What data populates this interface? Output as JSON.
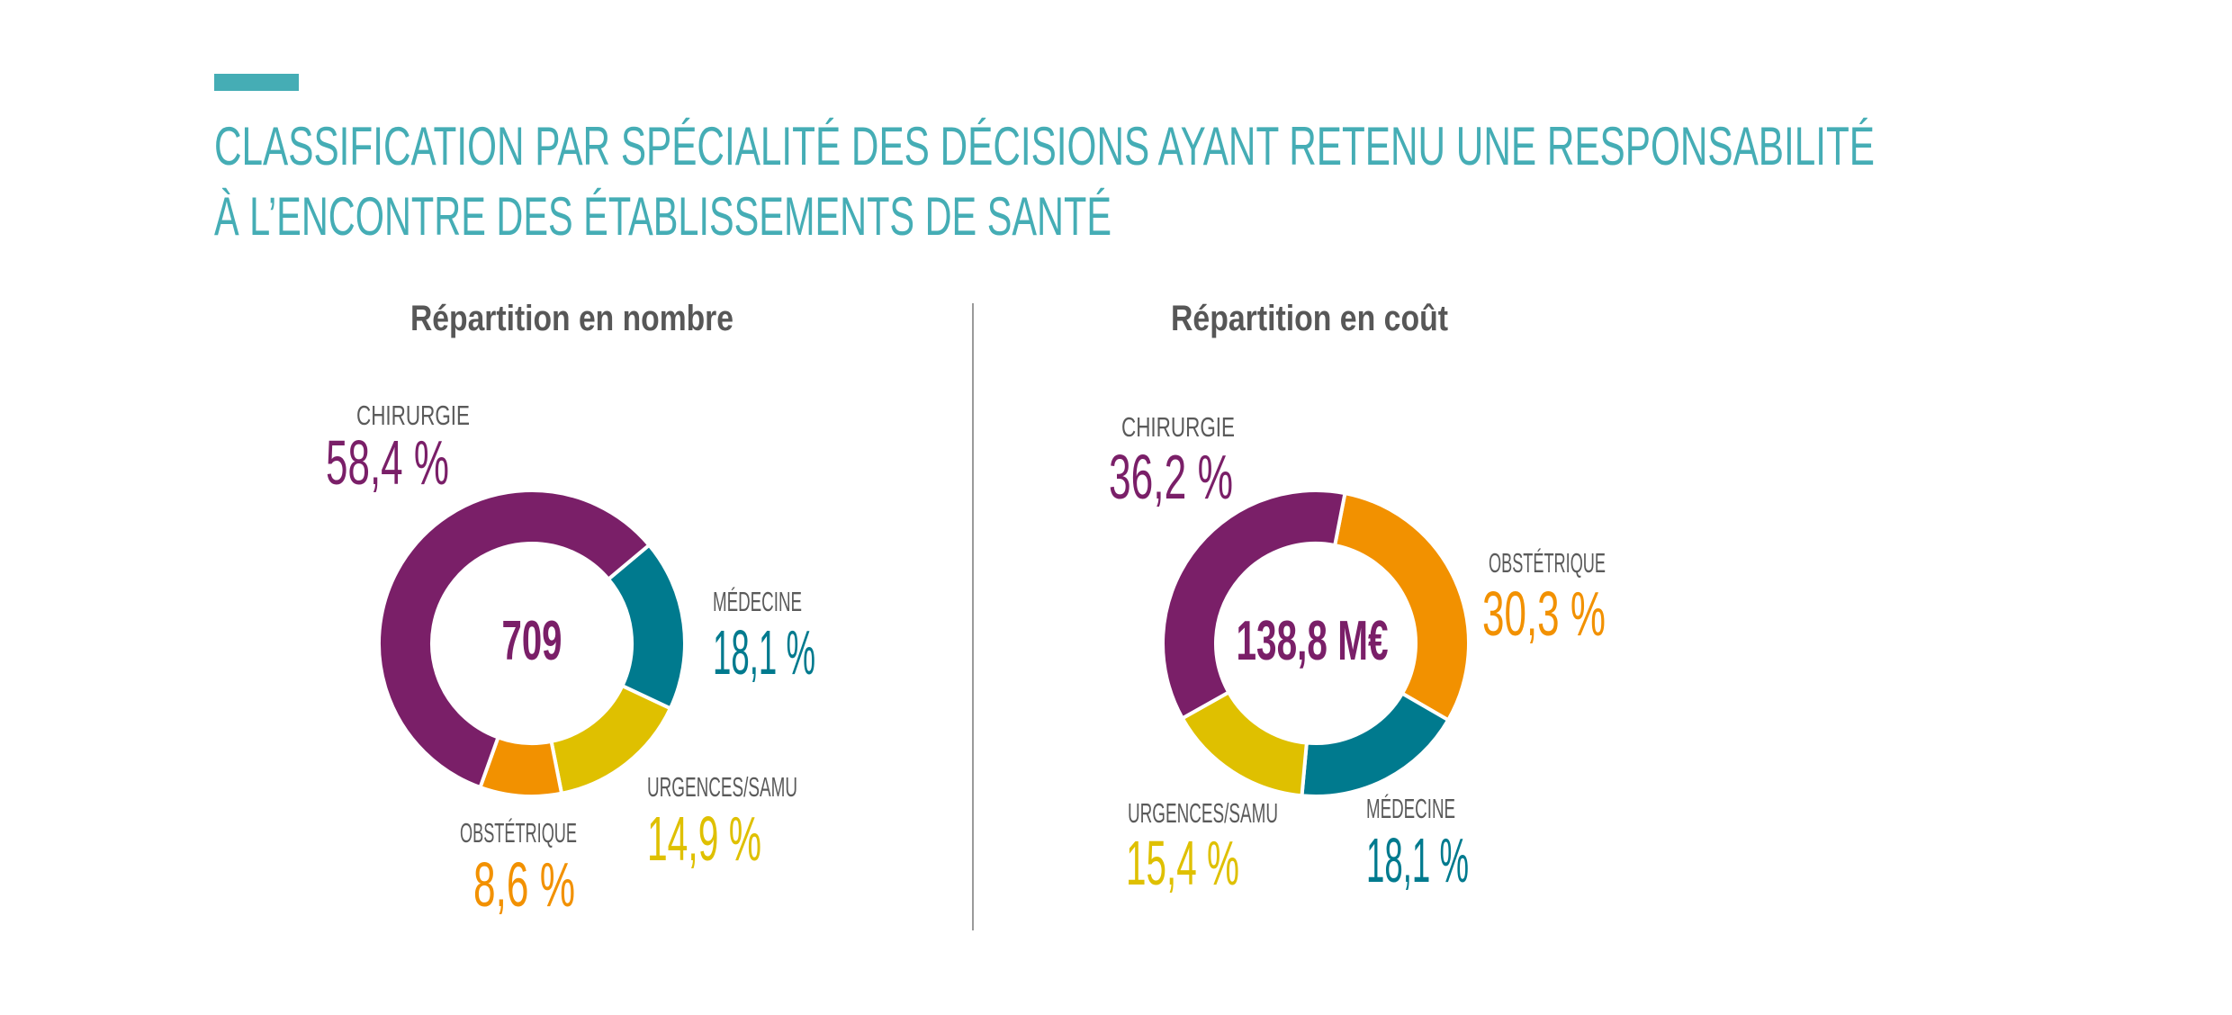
{
  "title": {
    "line1": "CLASSIFICATION PAR SPÉCIALITÉ DES DÉCISIONS AYANT RETENU UNE RESPONSABILITÉ",
    "line2": "À L’ENCONTRE DES ÉTABLISSEMENTS DE SANTÉ",
    "accent_color": "#45adb5"
  },
  "chart_data": [
    {
      "type": "pie",
      "variant": "donut",
      "title": "Répartition en nombre",
      "center_label": "709",
      "categories": [
        "MÉDECINE",
        "URGENCES/SAMU",
        "OBSTÉTRIQUE",
        "CHIRURGIE"
      ],
      "values": [
        18.1,
        14.9,
        8.6,
        58.4
      ],
      "value_labels": [
        "18,1 %",
        "14,9 %",
        "8,6 %",
        "58,4 %"
      ],
      "colors": [
        "#007a8e",
        "#dfc000",
        "#f29100",
        "#7a1f68"
      ],
      "start_angle_deg": 50
    },
    {
      "type": "pie",
      "variant": "donut",
      "title": "Répartition en coût",
      "center_label": "138,8 M€",
      "categories": [
        "OBSTÉTRIQUE",
        "MÉDECINE",
        "URGENCES/SAMU",
        "CHIRURGIE"
      ],
      "values": [
        30.3,
        18.1,
        15.4,
        36.2
      ],
      "value_labels": [
        "30,3 %",
        "18,1 %",
        "15,4 %",
        "36,2 %"
      ],
      "colors": [
        "#f29100",
        "#007a8e",
        "#dfc000",
        "#7a1f68"
      ],
      "start_angle_deg": 11
    }
  ]
}
